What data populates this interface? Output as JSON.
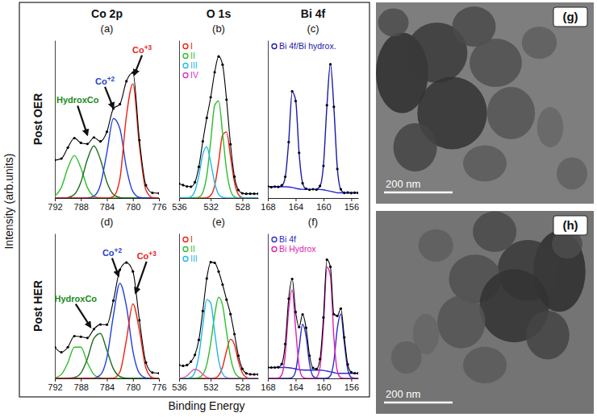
{
  "figure": {
    "y_label": "Intensity (arb.units)",
    "x_label": "Binding Energy",
    "columns": [
      "Co 2p",
      "O 1s",
      "Bi 4f"
    ],
    "rows": [
      "Post OER",
      "Post HER"
    ],
    "images": [
      {
        "label": "(g)",
        "scale_bar": "200 nm"
      },
      {
        "label": "(h)",
        "scale_bar": "200 nm"
      }
    ]
  },
  "chart_data": [
    {
      "type": "line",
      "title": "(a)",
      "x": [
        792,
        791,
        790,
        789,
        788,
        787,
        786,
        785,
        784,
        783,
        782,
        781,
        780,
        779,
        778,
        777,
        776
      ],
      "xlim": [
        792,
        776
      ],
      "xticks": [
        792,
        788,
        784,
        780,
        776
      ],
      "ylim": [
        0,
        1
      ],
      "tick_labels": "x",
      "series": [
        {
          "color": "#2bbf2b",
          "line_style": "solid",
          "values": [
            0.012,
            0.067,
            0.191,
            0.27,
            0.191,
            0.067,
            0.012,
            0.001,
            0,
            0,
            0,
            0,
            0,
            0,
            0,
            0,
            0
          ]
        },
        {
          "color": "#1b6e1b",
          "line_style": "solid",
          "values": [
            0,
            0,
            0.003,
            0.023,
            0.101,
            0.245,
            0.33,
            0.245,
            0.101,
            0.023,
            0.003,
            0,
            0,
            0,
            0,
            0,
            0
          ]
        },
        {
          "color": "#2040e0",
          "line_style": "solid",
          "values": [
            0,
            0,
            0,
            0,
            0,
            0.001,
            0.012,
            0.083,
            0.289,
            0.504,
            0.439,
            0.191,
            0.041,
            0.004,
            0,
            0,
            0
          ]
        },
        {
          "color": "#f02010",
          "line_style": "solid",
          "values": [
            0,
            0,
            0,
            0,
            0,
            0,
            0,
            0,
            0,
            0.01,
            0.123,
            0.519,
            0.724,
            0.333,
            0.051,
            0.003,
            0
          ]
        },
        {
          "color": "#000000",
          "line_style": "solid",
          "marker": "dot",
          "values": [
            0.24,
            0.25,
            0.32,
            0.38,
            0.35,
            0.343,
            0.384,
            0.359,
            0.42,
            0.567,
            0.595,
            0.74,
            0.795,
            0.367,
            0.081,
            0.033,
            0.03
          ]
        }
      ],
      "annotations": [
        {
          "text": "HydroxCo",
          "x": 788.5,
          "y": 0.6,
          "arrow_x": 787,
          "arrow_y": 0.4,
          "color": "#1b8a1b"
        },
        {
          "text": "Co+2",
          "x": 784.3,
          "y": 0.72,
          "arrow_x": 783,
          "arrow_y": 0.57,
          "color": "#1f3fd1"
        },
        {
          "text": "Co+3",
          "x": 778.6,
          "y": 0.92,
          "arrow_x": 779.8,
          "arrow_y": 0.78,
          "color": "#e8251f"
        }
      ]
    },
    {
      "type": "line",
      "title": "(b)",
      "x": [
        536,
        535.5,
        535,
        534.5,
        534,
        533.5,
        533,
        532.5,
        532,
        531.5,
        531,
        530.5,
        530,
        529.5,
        529,
        528.5,
        528,
        527.5,
        527,
        526.5,
        526
      ],
      "xlim": [
        536,
        526
      ],
      "xticks": [
        536,
        532,
        528
      ],
      "ylim": [
        0,
        1.1
      ],
      "tick_labels": "x",
      "legend": "top-left",
      "series": [
        {
          "name": "I",
          "color": "#f02010",
          "line_style": "solid",
          "values": [
            0,
            0,
            0,
            0,
            0,
            0,
            0,
            0.002,
            0.018,
            0.086,
            0.25,
            0.438,
            0.461,
            0.291,
            0.11,
            0.025,
            0.003,
            0,
            0,
            0,
            0
          ]
        },
        {
          "name": "II",
          "color": "#2bbf2b",
          "line_style": "solid",
          "values": [
            0,
            0,
            0,
            0,
            0.001,
            0.006,
            0.039,
            0.156,
            0.396,
            0.646,
            0.676,
            0.453,
            0.195,
            0.054,
            0.009,
            0.001,
            0,
            0,
            0,
            0,
            0
          ]
        },
        {
          "name": "III",
          "color": "#22b8e8",
          "line_style": "solid",
          "values": [
            0,
            0,
            0.001,
            0.009,
            0.049,
            0.157,
            0.306,
            0.356,
            0.249,
            0.105,
            0.026,
            0.004,
            0,
            0,
            0,
            0,
            0,
            0,
            0,
            0,
            0
          ]
        },
        {
          "name": "IV",
          "color": "#e030c8",
          "line_style": "solid",
          "values": [
            null,
            null,
            null,
            null,
            null,
            null,
            null,
            null,
            null,
            null,
            null,
            null,
            null,
            null,
            null,
            null,
            null,
            null,
            null,
            null,
            null
          ]
        },
        {
          "color": "#000000",
          "line_style": "solid",
          "marker": "dot",
          "values": [
            0.1,
            0.09,
            0.081,
            0.079,
            0.11,
            0.218,
            0.395,
            0.559,
            0.703,
            0.877,
            0.987,
            0.93,
            0.686,
            0.375,
            0.149,
            0.056,
            0.033,
            0.03,
            0.03,
            0.03,
            0.03
          ]
        }
      ]
    },
    {
      "type": "line",
      "title": "(c)",
      "x": [
        168,
        167.5,
        167,
        166.5,
        166,
        165.5,
        165,
        164.5,
        164,
        163.5,
        163,
        162.5,
        162,
        161.5,
        161,
        160.5,
        160,
        159.5,
        159,
        158.5,
        158,
        157.5,
        157,
        156.5,
        156,
        155.5,
        155
      ],
      "xlim": [
        168,
        155
      ],
      "xticks": [
        168,
        164,
        160,
        156
      ],
      "ylim": [
        0,
        1.05
      ],
      "tick_labels": "x",
      "legend": "top-left",
      "series": [
        {
          "color": "#2a2ad0",
          "line_style": "solid",
          "values": [
            0.075,
            0.075,
            0.075,
            0.075,
            0.075,
            0.075,
            0.074,
            0.07,
            0.065,
            0.06,
            0.058,
            0.057,
            0.057,
            0.057,
            0.057,
            0.057,
            0.055,
            0.05,
            0.045,
            0.04,
            0.035,
            0.035,
            0.035,
            0.035,
            0.035,
            0.035,
            0.035
          ]
        },
        {
          "name": "Bi 4f/Bi hydrox.",
          "color": "#1a1aa8",
          "line_style": "solid",
          "values": [
            0.075,
            0.075,
            0.075,
            0.075,
            0.081,
            0.138,
            0.377,
            0.706,
            0.651,
            0.296,
            0.1,
            0.06,
            0.057,
            0.057,
            0.058,
            0.078,
            0.218,
            0.612,
            0.895,
            0.602,
            0.198,
            0.056,
            0.036,
            0.035,
            0.035,
            0.035,
            0.035
          ]
        },
        {
          "color": "#000000",
          "line_style": "none",
          "marker": "dot",
          "values": [
            0.078,
            0.072,
            0.076,
            0.074,
            0.085,
            0.142,
            0.372,
            0.71,
            0.645,
            0.301,
            0.098,
            0.063,
            0.055,
            0.059,
            0.056,
            0.081,
            0.214,
            0.618,
            0.89,
            0.607,
            0.193,
            0.059,
            0.034,
            0.037,
            0.033,
            0.036,
            0.034
          ]
        }
      ]
    },
    {
      "type": "line",
      "title": "(d)",
      "x": [
        792,
        791,
        790,
        789,
        788,
        787,
        786,
        785,
        784,
        783,
        782,
        781,
        780,
        779,
        778,
        777,
        776
      ],
      "xlim": [
        792,
        776
      ],
      "xticks": [
        792,
        788,
        784,
        780,
        776
      ],
      "ylim": [
        0,
        0.85
      ],
      "tick_labels": "x",
      "series": [
        {
          "color": "#2bbf2b",
          "line_style": "solid",
          "values": [
            0.003,
            0.023,
            0.092,
            0.183,
            0.183,
            0.092,
            0.023,
            0.003,
            0,
            0,
            0,
            0,
            0,
            0,
            0,
            0,
            0
          ]
        },
        {
          "color": "#1b6e1b",
          "line_style": "solid",
          "values": [
            0,
            0,
            0.001,
            0.005,
            0.031,
            0.115,
            0.234,
            0.263,
            0.164,
            0.056,
            0.011,
            0.001,
            0,
            0,
            0,
            0,
            0
          ]
        },
        {
          "color": "#2040e0",
          "line_style": "solid",
          "values": [
            0,
            0,
            0,
            0,
            0,
            0,
            0.002,
            0.02,
            0.121,
            0.368,
            0.558,
            0.423,
            0.16,
            0.03,
            0.003,
            0,
            0
          ]
        },
        {
          "color": "#f02010",
          "line_style": "solid",
          "values": [
            0,
            0,
            0,
            0,
            0,
            0,
            0,
            0,
            0,
            0.002,
            0.038,
            0.225,
            0.437,
            0.281,
            0.06,
            0.004,
            0
          ]
        },
        {
          "color": "#000000",
          "line_style": "solid",
          "marker": "dot",
          "values": [
            0.183,
            0.153,
            0.183,
            0.248,
            0.244,
            0.237,
            0.289,
            0.316,
            0.315,
            0.456,
            0.637,
            0.679,
            0.627,
            0.341,
            0.093,
            0.034,
            0.03
          ]
        }
      ],
      "annotations": [
        {
          "text": "HydroxCo",
          "x": 788.8,
          "y": 0.45,
          "arrow_x": 786.5,
          "arrow_y": 0.3,
          "color": "#1b8a1b"
        },
        {
          "text": "Co+2",
          "x": 783.2,
          "y": 0.72,
          "arrow_x": 782.2,
          "arrow_y": 0.6,
          "color": "#1f3fd1"
        },
        {
          "text": "Co+3",
          "x": 777.9,
          "y": 0.7,
          "arrow_x": 779.6,
          "arrow_y": 0.5,
          "color": "#e8251f"
        }
      ]
    },
    {
      "type": "line",
      "title": "(e)",
      "x": [
        536,
        535.5,
        535,
        534.5,
        534,
        533.5,
        533,
        532.5,
        532,
        531.5,
        531,
        530.5,
        530,
        529.5,
        529,
        528.5,
        528,
        527.5,
        527,
        526.5,
        526
      ],
      "xlim": [
        536,
        526
      ],
      "xticks": [
        536,
        532,
        528
      ],
      "ylim": [
        0,
        1.1
      ],
      "tick_labels": "x",
      "legend": "top-left",
      "series": [
        {
          "name": "I",
          "color": "#f02010",
          "line_style": "solid",
          "values": [
            0,
            0,
            0,
            0,
            0,
            0,
            0,
            0,
            0,
            0.003,
            0.022,
            0.087,
            0.208,
            0.297,
            0.255,
            0.131,
            0.041,
            0.008,
            0.001,
            0,
            0
          ]
        },
        {
          "name": "II",
          "color": "#2bbf2b",
          "line_style": "solid",
          "values": [
            0,
            0,
            0,
            0,
            0.001,
            0.006,
            0.029,
            0.106,
            0.268,
            0.483,
            0.616,
            0.555,
            0.354,
            0.16,
            0.051,
            0.011,
            0.002,
            0,
            0,
            0,
            0
          ]
        },
        {
          "name": "III",
          "color": "#22b8e8",
          "line_style": "solid",
          "values": [
            0,
            0,
            0.001,
            0.008,
            0.048,
            0.172,
            0.401,
            0.598,
            0.572,
            0.351,
            0.138,
            0.035,
            0.006,
            0.001,
            0,
            0,
            0,
            0,
            0,
            0,
            0
          ]
        },
        {
          "color": "#e05aa0",
          "line_style": "solid",
          "values": [
            0.001,
            0.005,
            0.02,
            0.049,
            0.069,
            0.059,
            0.031,
            0.009,
            0.002,
            0,
            0,
            0,
            0,
            0,
            0,
            0,
            0,
            0,
            0,
            0,
            0
          ]
        },
        {
          "color": "#000000",
          "line_style": "solid",
          "marker": "dot",
          "values": [
            0.101,
            0.095,
            0.101,
            0.127,
            0.178,
            0.292,
            0.511,
            0.758,
            0.882,
            0.877,
            0.811,
            0.712,
            0.598,
            0.488,
            0.336,
            0.172,
            0.073,
            0.038,
            0.031,
            0.03,
            0.03
          ]
        }
      ]
    },
    {
      "type": "line",
      "title": "(f)",
      "x": [
        168,
        167.5,
        167,
        166.5,
        166,
        165.5,
        165,
        164.5,
        164,
        163.5,
        163,
        162.5,
        162,
        161.5,
        161,
        160.5,
        160,
        159.5,
        159,
        158.5,
        158,
        157.5,
        157,
        156.5,
        156,
        155.5,
        155
      ],
      "xlim": [
        168,
        155
      ],
      "xticks": [
        168,
        164,
        160,
        156
      ],
      "ylim": [
        0,
        1
      ],
      "tick_labels": "x",
      "legend": "top-left",
      "series": [
        {
          "color": "#2a2ad0",
          "line_style": "solid",
          "values": [
            0.075,
            0.075,
            0.075,
            0.075,
            0.075,
            0.075,
            0.074,
            0.07,
            0.065,
            0.06,
            0.058,
            0.057,
            0.057,
            0.057,
            0.057,
            0.057,
            0.055,
            0.05,
            0.045,
            0.04,
            0.035,
            0.035,
            0.035,
            0.035,
            0.035,
            0.035,
            0.035
          ]
        },
        {
          "name": "Bi 4f",
          "color": "#2a2ad0",
          "line_style": "solid",
          "values": [
            0,
            0,
            0,
            0,
            0,
            0,
            0,
            0.006,
            0.051,
            0.21,
            0.374,
            0.292,
            0.1,
            0.015,
            0.001,
            0,
            0,
            0.001,
            0.018,
            0.118,
            0.346,
            0.443,
            0.248,
            0.061,
            0.007,
            0.001,
            0
          ]
        },
        {
          "name": "Bi Hydrox",
          "color": "#e020b0",
          "line_style": "solid",
          "values": [
            0,
            0,
            0,
            0.002,
            0.024,
            0.162,
            0.476,
            0.61,
            0.342,
            0.084,
            0.009,
            0,
            0,
            0,
            0.007,
            0.076,
            0.365,
            0.768,
            0.707,
            0.285,
            0.05,
            0.004,
            0,
            0,
            0,
            0,
            0
          ]
        },
        {
          "color": "#000000",
          "line_style": "solid",
          "marker": "dot",
          "values": [
            0.075,
            0.075,
            0.075,
            0.077,
            0.099,
            0.237,
            0.55,
            0.686,
            0.458,
            0.354,
            0.441,
            0.349,
            0.157,
            0.072,
            0.065,
            0.133,
            0.42,
            0.819,
            0.77,
            0.443,
            0.431,
            0.482,
            0.283,
            0.096,
            0.042,
            0.036,
            0.035
          ]
        }
      ]
    }
  ]
}
